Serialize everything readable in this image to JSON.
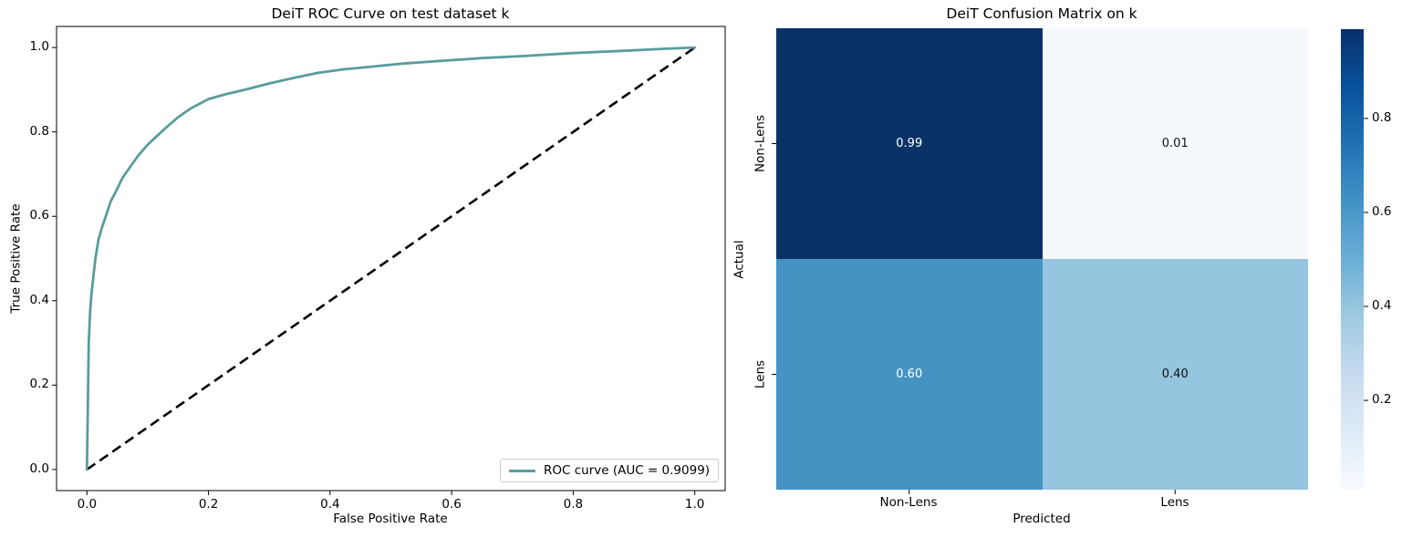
{
  "chart_data": [
    {
      "type": "line",
      "title": "DeiT ROC Curve on test dataset k",
      "xlabel": "False Positive Rate",
      "ylabel": "True Positive Rate",
      "xlim": [
        -0.05,
        1.05
      ],
      "ylim": [
        -0.05,
        1.05
      ],
      "xticks": [
        0.0,
        0.2,
        0.4,
        0.6,
        0.8,
        1.0
      ],
      "yticks": [
        0.0,
        0.2,
        0.4,
        0.6,
        0.8,
        1.0
      ],
      "grid": false,
      "legend": {
        "position": "lower right",
        "entries": [
          {
            "label": "ROC curve (AUC = 0.9099)",
            "color": "#5b9c9d",
            "style": "solid"
          }
        ]
      },
      "series": [
        {
          "name": "ROC curve (AUC = 0.9099)",
          "color": "#5b9c9d",
          "style": "solid",
          "x": [
            0,
            0.003,
            0.004,
            0.005,
            0.007,
            0.01,
            0.014,
            0.019,
            0.025,
            0.031,
            0.039,
            0.048,
            0.058,
            0.07,
            0.085,
            0.1,
            0.115,
            0.13,
            0.15,
            0.17,
            0.2,
            0.23,
            0.26,
            0.3,
            0.34,
            0.38,
            0.42,
            0.47,
            0.52,
            0.58,
            0.65,
            0.72,
            0.8,
            0.88,
            0.95,
            1.0
          ],
          "y": [
            0,
            0.3,
            0.335,
            0.37,
            0.41,
            0.45,
            0.5,
            0.545,
            0.575,
            0.6,
            0.635,
            0.66,
            0.69,
            0.715,
            0.745,
            0.77,
            0.79,
            0.81,
            0.835,
            0.855,
            0.878,
            0.89,
            0.9,
            0.915,
            0.928,
            0.94,
            0.948,
            0.955,
            0.962,
            0.968,
            0.975,
            0.98,
            0.987,
            0.992,
            0.997,
            1.0
          ]
        },
        {
          "name": "chance-diagonal",
          "color": "#000000",
          "style": "dashed",
          "x": [
            0,
            1
          ],
          "y": [
            0,
            1
          ]
        }
      ]
    },
    {
      "type": "heatmap",
      "title": "DeiT Confusion Matrix on k",
      "xlabel": "Predicted",
      "ylabel": "Actual",
      "x_categories": [
        "Non-Lens",
        "Lens"
      ],
      "y_categories": [
        "Non-Lens",
        "Lens"
      ],
      "values": [
        [
          0.99,
          0.01
        ],
        [
          0.6,
          0.4
        ]
      ],
      "cell_labels": [
        [
          "0.99",
          "0.01"
        ],
        [
          "0.60",
          "0.40"
        ]
      ],
      "cell_colors": [
        [
          "#0a3266",
          "#f5f9fe"
        ],
        [
          "#4493c3",
          "#95c5df"
        ]
      ],
      "cell_text_colors": [
        [
          "#ffffff",
          "#111111"
        ],
        [
          "#ffffff",
          "#111111"
        ]
      ],
      "vmin": 0.01,
      "vmax": 0.99,
      "colormap": "Blues",
      "colorbar": {
        "ticks": [
          0.2,
          0.4,
          0.6,
          0.8
        ],
        "cmap_stops": [
          [
            "0",
            "#f7fbff"
          ],
          [
            "0.125",
            "#deebf7"
          ],
          [
            "0.25",
            "#c6dbef"
          ],
          [
            "0.375",
            "#9ecae1"
          ],
          [
            "0.5",
            "#6baed6"
          ],
          [
            "0.625",
            "#4292c6"
          ],
          [
            "0.75",
            "#2171b5"
          ],
          [
            "0.875",
            "#08519c"
          ],
          [
            "1",
            "#08306b"
          ]
        ]
      }
    }
  ]
}
